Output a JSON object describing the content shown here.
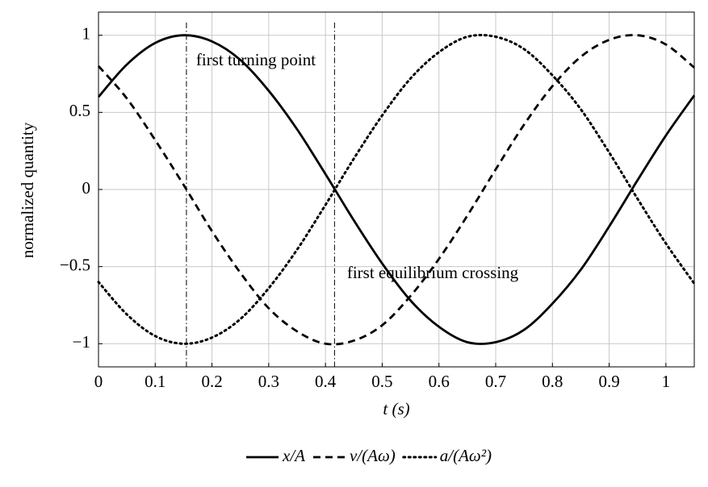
{
  "chart_data": {
    "type": "line",
    "x_label": "t (s)",
    "y_label": "normalized quantity",
    "x": [
      0,
      0.05,
      0.1,
      0.15,
      0.2,
      0.25,
      0.3,
      0.35,
      0.4,
      0.45,
      0.5,
      0.55,
      0.6,
      0.65,
      0.7,
      0.75,
      0.8,
      0.85,
      0.9,
      0.95,
      1,
      1.05
    ],
    "series": [
      {
        "name": "x/A",
        "color": "#000000",
        "linestyle": "solid",
        "values": [
          0.6,
          0.81,
          0.95,
          1,
          0.96,
          0.84,
          0.64,
          0.39,
          0.1,
          -0.2,
          -0.48,
          -0.72,
          -0.89,
          -0.99,
          -0.99,
          -0.91,
          -0.74,
          -0.52,
          -0.24,
          0.06,
          0.35,
          0.61
        ]
      },
      {
        "name": "v/(Aω)",
        "color": "#000000",
        "linestyle": "dashed",
        "values": [
          0.8,
          0.59,
          0.32,
          0.03,
          -0.27,
          -0.54,
          -0.77,
          -0.92,
          -1,
          -0.98,
          -0.88,
          -0.69,
          -0.45,
          -0.17,
          0.13,
          0.42,
          0.67,
          0.86,
          0.97,
          1,
          0.94,
          0.79
        ]
      },
      {
        "name": "a/(Aω²)",
        "color": "#000000",
        "linestyle": "dotted",
        "values": [
          -0.6,
          -0.81,
          -0.95,
          -1,
          -0.96,
          -0.84,
          -0.64,
          -0.39,
          -0.1,
          0.2,
          0.48,
          0.72,
          0.89,
          0.99,
          0.99,
          0.91,
          0.74,
          0.52,
          0.24,
          -0.06,
          -0.35,
          -0.61
        ]
      }
    ],
    "vlines": [
      0.155,
      0.416
    ],
    "annotations": [
      {
        "text": "first turning point",
        "x": 0.172,
        "y": 0.83
      },
      {
        "text": "first equilibrium crossing",
        "x": 0.438,
        "y": -0.55
      }
    ],
    "xlim": [
      0,
      1.05
    ],
    "ylim": [
      -1.15,
      1.15
    ],
    "xticks": [
      0,
      0.1,
      0.2,
      0.3,
      0.4,
      0.5,
      0.6,
      0.7,
      0.8,
      0.9,
      1
    ],
    "yticks": [
      {
        "value": -1,
        "label": "−1"
      },
      {
        "value": -0.5,
        "label": "−0.5"
      },
      0,
      0.5,
      1
    ],
    "grid": true,
    "legend": "bottom"
  }
}
